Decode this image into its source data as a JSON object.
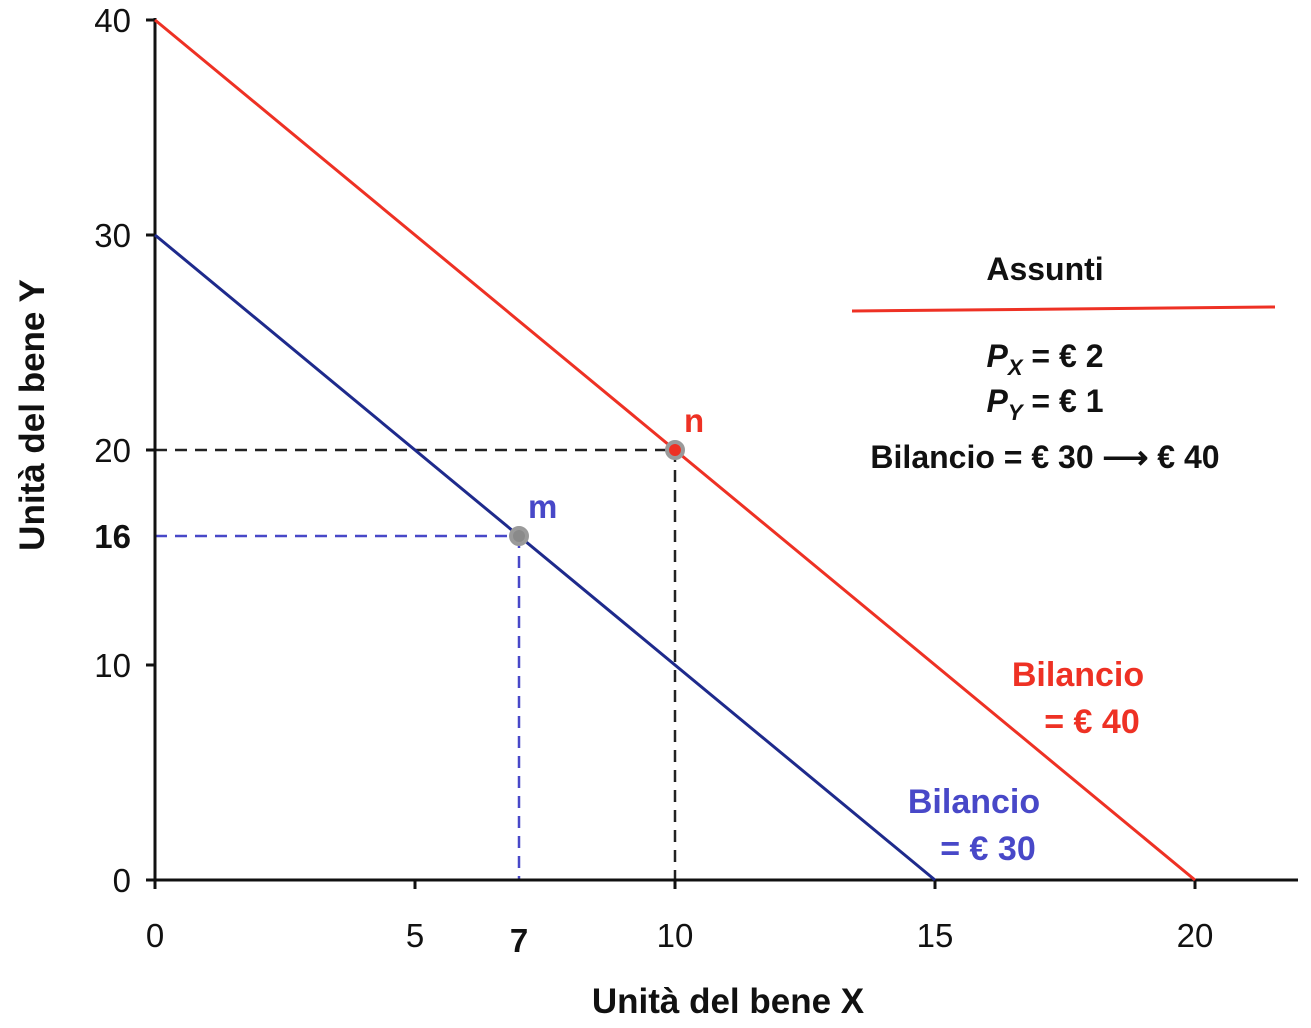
{
  "chart_data": {
    "type": "line",
    "title": "",
    "xlabel": "Unità del bene X",
    "ylabel": "Unità del bene Y",
    "xlim": [
      0,
      22
    ],
    "ylim": [
      0,
      40
    ],
    "x_ticks": [
      0,
      5,
      10,
      15,
      20
    ],
    "y_ticks": [
      0,
      10,
      20,
      30,
      40
    ],
    "grid": false,
    "series": [
      {
        "label_lines": [
          "Bilancio",
          "= € 30"
        ],
        "color": "#1e2a8c",
        "label_color": "#4848c8",
        "points": [
          [
            0,
            30
          ],
          [
            15,
            0
          ]
        ]
      },
      {
        "label_lines": [
          "Bilancio",
          "= € 40"
        ],
        "color": "#ee3124",
        "label_color": "#ee3124",
        "points": [
          [
            0,
            40
          ],
          [
            20,
            0
          ]
        ]
      }
    ],
    "points": [
      {
        "name": "m",
        "x": 7,
        "y": 16,
        "color": "#4848c8",
        "x_label": "7",
        "y_label": "16"
      },
      {
        "name": "n",
        "x": 10,
        "y": 20,
        "color": "#ee3124"
      }
    ],
    "legend": {
      "title": "Assunti",
      "lines": [
        {
          "base": "P",
          "sub": "X",
          "rest": " = € 2"
        },
        {
          "base": "P",
          "sub": "Y",
          "rest": " = € 1"
        },
        {
          "base": "",
          "sub": "",
          "rest": "Bilancio = € 30 ⟶ € 40"
        }
      ],
      "rule_color": "#ee3124"
    }
  }
}
